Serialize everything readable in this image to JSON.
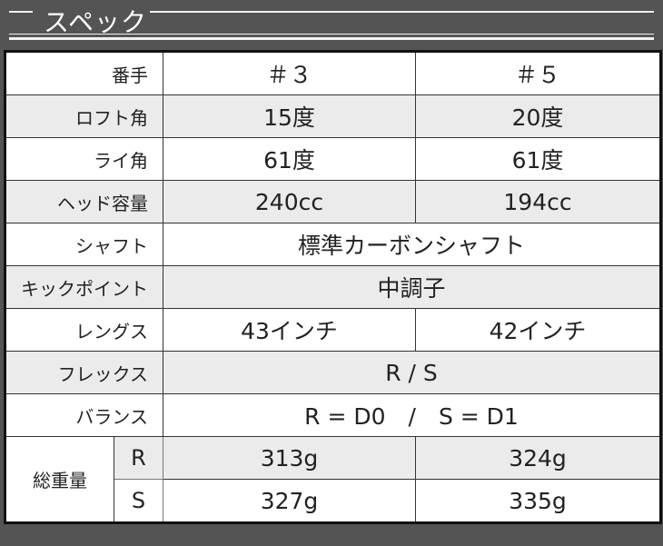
{
  "title": "スペック",
  "header": {
    "c1": "＃3",
    "c2": "＃5"
  },
  "rows": [
    {
      "label": "番手",
      "c1": "＃３",
      "c2": "＃５"
    },
    {
      "label": "ロフト角",
      "c1": "15度",
      "c2": "20度"
    },
    {
      "label": "ライ角",
      "c1": "61度",
      "c2": "61度"
    },
    {
      "label": "ヘッド容量",
      "c1": "240cc",
      "c2": "194cc"
    },
    {
      "label": "シャフト",
      "value": "標準カーボンシャフト"
    },
    {
      "label": "キックポイント",
      "value": "中調子"
    },
    {
      "label": "レングス",
      "c1": "43インチ",
      "c2": "42インチ"
    },
    {
      "label": "フレックス",
      "value": "R / S"
    },
    {
      "label": "バランス",
      "value": "R = D0　/　S = D1"
    }
  ],
  "weight": {
    "label": "総重量",
    "r": {
      "flex": "R",
      "c1": "313g",
      "c2": "324g"
    },
    "s": {
      "flex": "S",
      "c1": "327g",
      "c2": "335g"
    }
  }
}
